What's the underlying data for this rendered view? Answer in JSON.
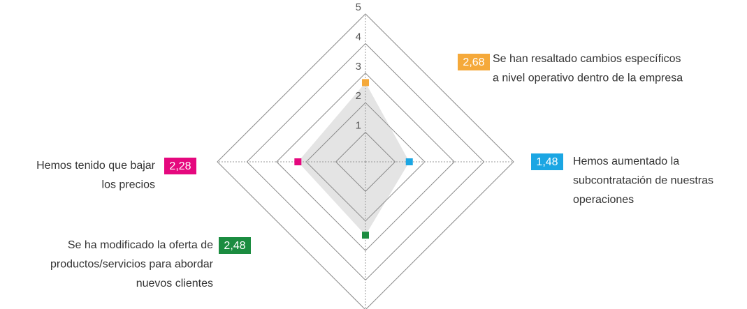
{
  "chart_data": {
    "type": "radar",
    "categories": [
      [
        "Se han resaltado cambios específicos",
        "a nivel operativo dentro de la empresa"
      ],
      [
        "Hemos aumentado la",
        "subcontratación de nuestras",
        "operaciones"
      ],
      [
        "Se ha modificado la oferta de",
        "productos/servicios para abordar",
        "nuevos clientes"
      ],
      [
        "Hemos tenido que bajar",
        "los precios"
      ]
    ],
    "values": [
      2.68,
      1.48,
      2.48,
      2.28
    ],
    "value_labels": [
      "2,68",
      "1,48",
      "2,48",
      "2,28"
    ],
    "colors": [
      "#f5a93a",
      "#1ba6e3",
      "#1b8c40",
      "#e5087e"
    ],
    "fill": "#e4e4e4",
    "rlim": [
      0,
      5
    ],
    "rticks": [
      1,
      2,
      3,
      4,
      5
    ]
  }
}
